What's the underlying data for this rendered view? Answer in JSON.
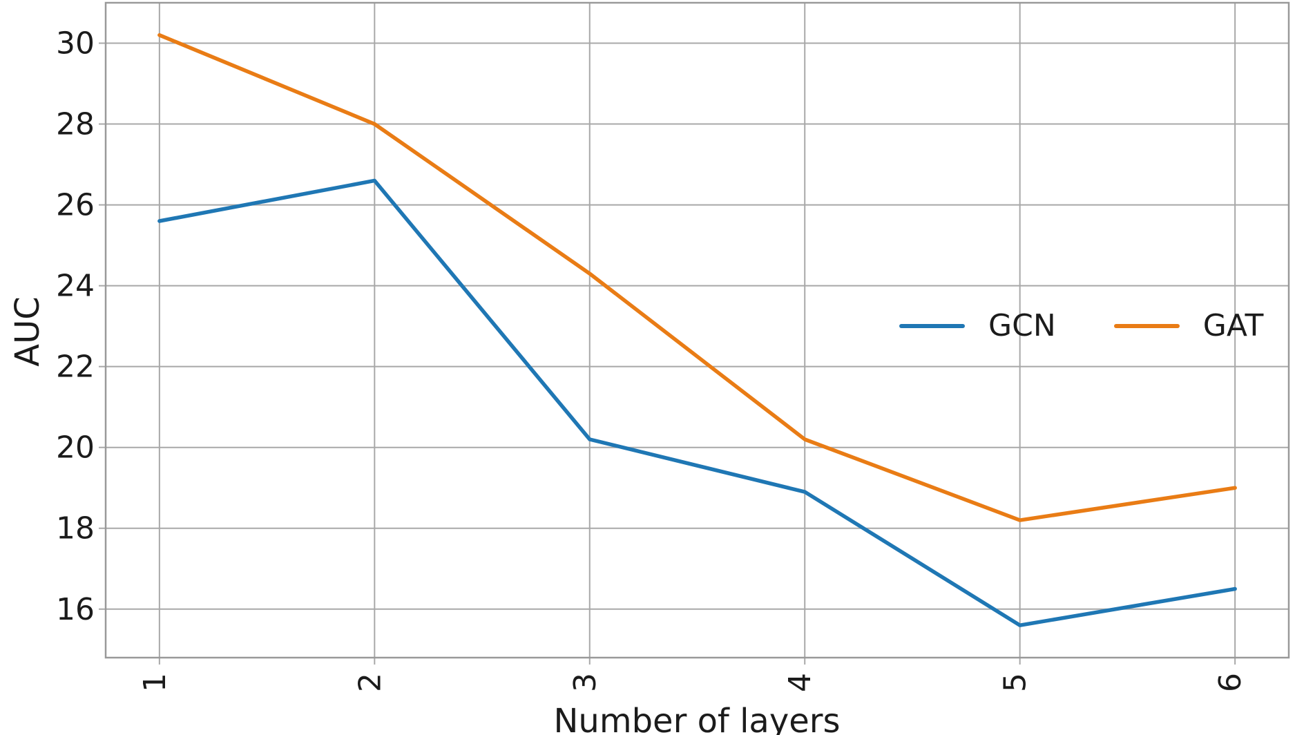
{
  "figure": {
    "ylabel": "AUC",
    "xlabel": "Number of layers",
    "background": "#ffffff",
    "text_color": "#1b1b1b",
    "grid_color": "#a8a8a8",
    "border_color": "#999999"
  },
  "legend": {
    "entries": [
      {
        "label": "GCN",
        "color": "#1f77b4"
      },
      {
        "label": "GAT",
        "color": "#e97c15"
      }
    ]
  },
  "chart_data": {
    "type": "line",
    "x": [
      1,
      2,
      3,
      4,
      5,
      6
    ],
    "series": [
      {
        "name": "GCN",
        "color": "#1f77b4",
        "values": [
          25.6,
          26.6,
          20.2,
          18.9,
          15.6,
          16.5
        ]
      },
      {
        "name": "GAT",
        "color": "#e97c15",
        "values": [
          30.2,
          28.0,
          24.3,
          20.2,
          18.2,
          19.0
        ]
      }
    ],
    "title": "",
    "xlabel": "Number of layers",
    "ylabel": "AUC",
    "xlim": [
      0.75,
      6.25
    ],
    "ylim": [
      14.8,
      31.0
    ],
    "xticks": [
      1,
      2,
      3,
      4,
      5,
      6
    ],
    "yticks": [
      16,
      18,
      20,
      22,
      24,
      26,
      28,
      30
    ],
    "xtick_rotation": 90,
    "grid": true,
    "legend_position": "inside-center-right",
    "line_width": 5.5
  }
}
